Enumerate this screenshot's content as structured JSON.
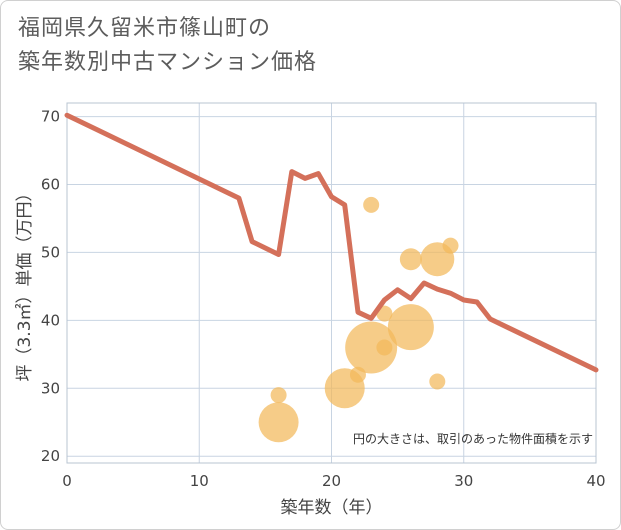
{
  "title_line1": "福岡県久留米市篠山町の",
  "title_line2": "築年数別中古マンション価格",
  "chart_data": {
    "type": "line+bubble",
    "xlabel": "築年数（年）",
    "ylabel": "坪（3.3㎡）単価（万円）",
    "xlim": [
      0,
      40
    ],
    "ylim": [
      19,
      72
    ],
    "xticks": [
      0,
      10,
      20,
      30,
      40
    ],
    "yticks": [
      20,
      30,
      40,
      50,
      60,
      70
    ],
    "note": "円の大きさは、取引のあった物件面積を示す",
    "line_color": "#d4705a",
    "bubble_color": "#f2b85a",
    "line": {
      "x": [
        0,
        13,
        14,
        16,
        17,
        18,
        19,
        20,
        21,
        22,
        23,
        24,
        25,
        26,
        27,
        28,
        29,
        30,
        31,
        32,
        40
      ],
      "y": [
        70.2,
        58,
        51.6,
        49.7,
        61.9,
        60.9,
        61.6,
        58.2,
        57,
        41.2,
        40.3,
        43,
        44.5,
        43.2,
        45.5,
        44.6,
        44,
        43,
        42.7,
        40.2,
        32.7
      ]
    },
    "bubbles": [
      {
        "x": 16,
        "y": 29,
        "size": 1
      },
      {
        "x": 16,
        "y": 25,
        "size": 5
      },
      {
        "x": 21,
        "y": 30,
        "size": 5
      },
      {
        "x": 22,
        "y": 32,
        "size": 1
      },
      {
        "x": 23,
        "y": 57,
        "size": 1
      },
      {
        "x": 23,
        "y": 36,
        "size": 7
      },
      {
        "x": 24,
        "y": 41,
        "size": 1
      },
      {
        "x": 24,
        "y": 36,
        "size": 1
      },
      {
        "x": 26,
        "y": 49,
        "size": 2
      },
      {
        "x": 26,
        "y": 39,
        "size": 6
      },
      {
        "x": 28,
        "y": 49,
        "size": 4
      },
      {
        "x": 28,
        "y": 31,
        "size": 1
      },
      {
        "x": 29,
        "y": 51,
        "size": 1
      }
    ]
  }
}
